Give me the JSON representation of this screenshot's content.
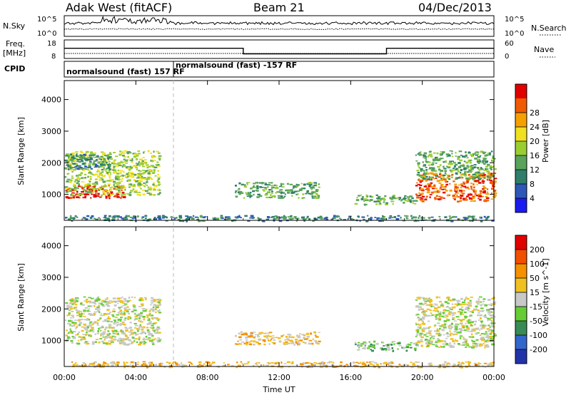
{
  "header": {
    "site": "Adak West (fitACF)",
    "beam": "Beam 21",
    "date": "04/Dec/2013"
  },
  "nsky_panel": {
    "left_label": "N.Sky",
    "right_label": "N.Search",
    "left_ticks": [
      "10^5",
      "10^0"
    ],
    "right_ticks": [
      "10^5",
      "10^0"
    ]
  },
  "freq_panel": {
    "left_label_1": "Freq.",
    "left_label_2": "[MHz]",
    "right_label": "Nave",
    "left_ticks": [
      "18",
      "8"
    ],
    "right_ticks": [
      "60",
      "0"
    ]
  },
  "cpid_panel": {
    "label": "CPID",
    "program_1": "normalsound (fast) 157 RF",
    "program_2": "normalsound (fast) -157 RF"
  },
  "power_panel": {
    "ylabel": "Slant Range [km]",
    "yticks": [
      "1000",
      "2000",
      "3000",
      "4000"
    ],
    "colorbar_label": "Power [dB]",
    "colorbar_ticks": [
      "4",
      "8",
      "12",
      "16",
      "20",
      "24",
      "28"
    ],
    "colorbar_colors": [
      "#1b1bf0",
      "#2f57b8",
      "#2f7e6a",
      "#5aa35a",
      "#9acd32",
      "#f0e020",
      "#f5a000",
      "#f05a00",
      "#e00000"
    ]
  },
  "velocity_panel": {
    "ylabel": "Slant Range [km]",
    "yticks": [
      "1000",
      "2000",
      "3000",
      "4000"
    ],
    "colorbar_label": "Velocity [m s^-1]",
    "colorbar_ticks": [
      "200",
      "100",
      "50",
      "15",
      "-15",
      "-50",
      "-100",
      "-200"
    ],
    "colorbar_colors": [
      "#2233aa",
      "#3366cc",
      "#3a8a55",
      "#66cc33",
      "#c8c8c8",
      "#f0c020",
      "#f59000",
      "#f05000",
      "#e00000"
    ]
  },
  "x_axis": {
    "label": "Time UT",
    "ticks": [
      "00:00",
      "04:00",
      "08:00",
      "12:00",
      "16:00",
      "20:00",
      "00:00"
    ]
  },
  "chart_data": {
    "type": "heatmap",
    "x_range_hours": [
      0,
      24
    ],
    "y_range_km": [
      180,
      4600
    ],
    "program_change_hour": 6.1,
    "freq_mhz": [
      {
        "start": 0,
        "end": 10,
        "value": 13.5
      },
      {
        "start": 10,
        "end": 18,
        "value": 10.5
      },
      {
        "start": 18,
        "end": 24,
        "value": 13.5
      }
    ],
    "power_regions": [
      {
        "t0": 0.0,
        "t1": 3.3,
        "r0": 900,
        "r1": 1300,
        "level": 8
      },
      {
        "t0": 0.0,
        "t1": 5.3,
        "r0": 1000,
        "r1": 2400,
        "level": 4
      },
      {
        "t0": 0.0,
        "t1": 2.5,
        "r0": 1800,
        "r1": 2300,
        "level": 2
      },
      {
        "t0": 9.5,
        "t1": 14.2,
        "r0": 900,
        "r1": 1400,
        "level": 3
      },
      {
        "t0": 16.2,
        "t1": 19.7,
        "r0": 700,
        "r1": 1000,
        "level": 3
      },
      {
        "t0": 19.6,
        "t1": 24.0,
        "r0": 800,
        "r1": 1700,
        "level": 7
      },
      {
        "t0": 19.6,
        "t1": 24.0,
        "r0": 1500,
        "r1": 2400,
        "level": 3
      },
      {
        "t0": 0.0,
        "t1": 24.0,
        "r0": 180,
        "r1": 350,
        "level": 2
      }
    ],
    "velocity_regions": [
      {
        "t0": 0.0,
        "t1": 5.3,
        "r0": 900,
        "r1": 2400,
        "level": 4
      },
      {
        "t0": 9.5,
        "t1": 14.2,
        "r0": 900,
        "r1": 1300,
        "level": 5
      },
      {
        "t0": 16.2,
        "t1": 19.7,
        "r0": 700,
        "r1": 1000,
        "level": 3
      },
      {
        "t0": 19.6,
        "t1": 24.0,
        "r0": 800,
        "r1": 2400,
        "level": 4
      },
      {
        "t0": 0.0,
        "t1": 24.0,
        "r0": 180,
        "r1": 350,
        "level": 5
      }
    ]
  }
}
